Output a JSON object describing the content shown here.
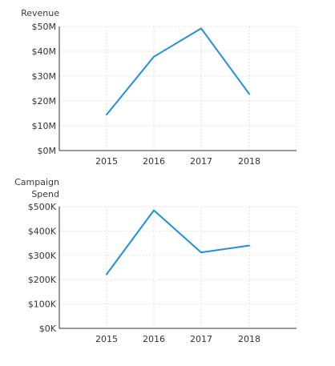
{
  "chart_data": [
    {
      "type": "line",
      "ylabel": "Revenue",
      "ylabel_lines": [
        "Revenue"
      ],
      "categories": [
        "2015",
        "2016",
        "2017",
        "2018"
      ],
      "yticks": [
        "$0M",
        "$10M",
        "$20M",
        "$30M",
        "$40M",
        "$50M"
      ],
      "ylim": [
        0,
        50
      ],
      "series": [
        {
          "values": [
            14.5,
            37.8,
            49.2,
            22.8
          ],
          "color": "#1e90e0"
        }
      ],
      "grid": true
    },
    {
      "type": "line",
      "ylabel": "Campaign Spend",
      "ylabel_lines": [
        "Campaign",
        "Spend"
      ],
      "categories": [
        "2015",
        "2016",
        "2017",
        "2018"
      ],
      "yticks": [
        "$0K",
        "$100K",
        "$200K",
        "$300K",
        "$400K",
        "$500K"
      ],
      "ylim": [
        0,
        500
      ],
      "series": [
        {
          "values": [
            222,
            485,
            312,
            340
          ],
          "color": "#1e90e0"
        }
      ],
      "grid": true
    }
  ]
}
